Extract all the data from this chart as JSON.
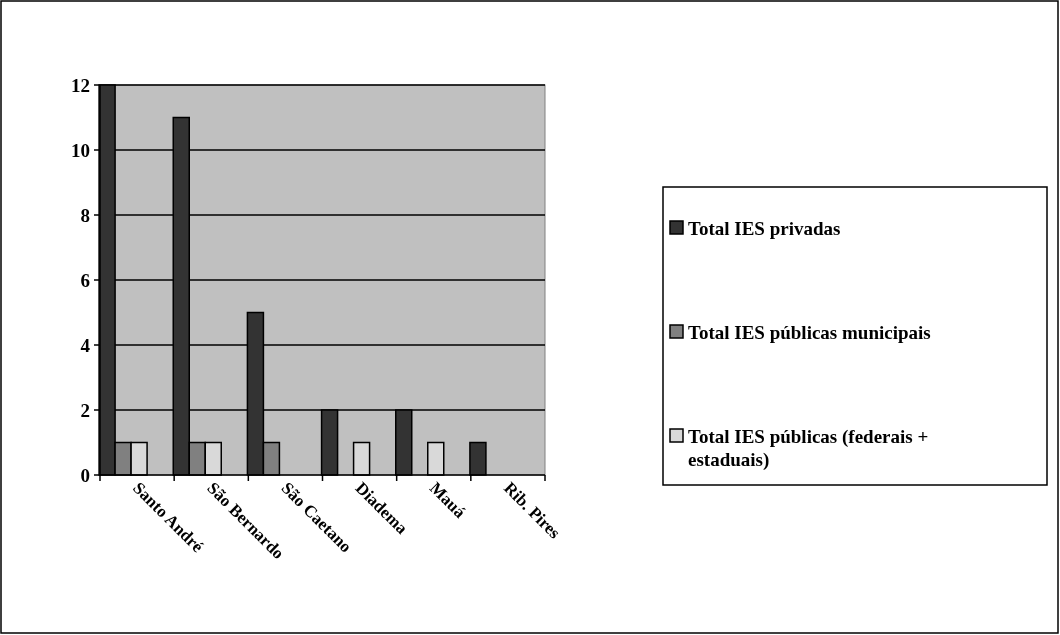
{
  "chart_data": {
    "type": "bar",
    "categories": [
      "Santo André",
      "São Bernardo",
      "São Caetano",
      "Diadema",
      "Mauá",
      "Rib. Pires"
    ],
    "series": [
      {
        "name": "Total IES privadas",
        "color": "#333333",
        "values": [
          12,
          11,
          5,
          2,
          2,
          1
        ]
      },
      {
        "name": "Total IES públicas municipais",
        "color": "#808080",
        "values": [
          1,
          1,
          1,
          0,
          0,
          0
        ]
      },
      {
        "name": "Total IES públicas (federais + estaduais)",
        "color": "#d9d9d9",
        "values": [
          1,
          1,
          0,
          1,
          1,
          0
        ]
      }
    ],
    "ylim": [
      0,
      12
    ],
    "yticks": [
      0,
      2,
      4,
      6,
      8,
      10,
      12
    ],
    "grid": "y",
    "legend": "right"
  }
}
